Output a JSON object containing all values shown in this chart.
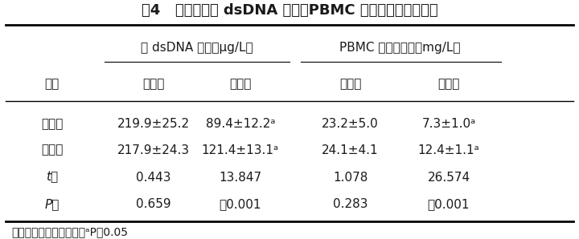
{
  "title": "表4   两组患者抗 dsDNA 抗体、PBMC 蛋白质羰基浓度比较",
  "col_group1": "抗 dsDNA 抗体（μg/L）",
  "col_group2": "PBMC 蛋白质羰基（mg/L）",
  "col_sub1": "治疗前",
  "col_sub2": "治疗后",
  "col_sub3": "治疗前",
  "col_sub4": "治疗后",
  "row_header": "组别",
  "rows": [
    [
      "观察组",
      "219.9±25.2",
      "89.4±12.2ᵃ",
      "23.2±5.0",
      "7.3±1.0ᵃ"
    ],
    [
      "对照组",
      "217.9±24.3",
      "121.4±13.1ᵃ",
      "24.1±4.1",
      "12.4±1.1ᵃ"
    ],
    [
      "t值",
      "0.443",
      "13.847",
      "1.078",
      "26.574"
    ],
    [
      "P值",
      "0.659",
      "＜0.001",
      "0.283",
      "＜0.001"
    ]
  ],
  "note": "注：与同组治疗前比较，ᵃP＜0.05",
  "italic_rows": [
    "t值",
    "P值"
  ],
  "bg_color": "#ffffff",
  "text_color": "#1a1a1a",
  "line_color": "#000000",
  "font_size": 11,
  "title_font_size": 13
}
